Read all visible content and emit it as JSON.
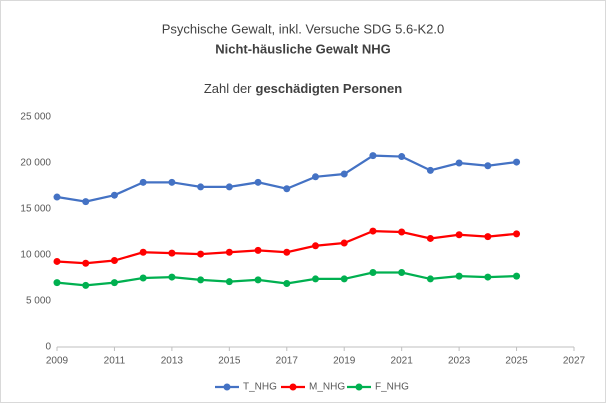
{
  "chart_data": {
    "type": "line",
    "title": "Psychische Gewalt, inkl. Versuche SDG 5.6-K2.0",
    "title_bold": "Nicht-häusliche Gewalt NHG",
    "subtitle": "Zahl der",
    "subtitle_bold": "geschädigten Personen",
    "x": [
      2009,
      2010,
      2011,
      2012,
      2013,
      2014,
      2015,
      2016,
      2017,
      2018,
      2019,
      2020,
      2021,
      2022,
      2023,
      2024,
      2025
    ],
    "series": [
      {
        "name": "T_NHG",
        "color": "#4472c4",
        "values": [
          16300,
          15800,
          16500,
          17900,
          17900,
          17400,
          17400,
          17900,
          17200,
          18500,
          18800,
          20800,
          20700,
          19200,
          20000,
          19700,
          20100
        ]
      },
      {
        "name": "M_NHG",
        "color": "#ff0000",
        "values": [
          9300,
          9100,
          9400,
          10300,
          10200,
          10100,
          10300,
          10500,
          10300,
          11000,
          11300,
          12600,
          12500,
          11800,
          12200,
          12000,
          12300
        ]
      },
      {
        "name": "F_NHG",
        "color": "#00b050",
        "values": [
          7000,
          6700,
          7000,
          7500,
          7600,
          7300,
          7100,
          7300,
          6900,
          7400,
          7400,
          8100,
          8100,
          7400,
          7700,
          7600,
          7700
        ]
      }
    ],
    "xlim": [
      2009,
      2027
    ],
    "xticks": [
      2009,
      2011,
      2013,
      2015,
      2017,
      2019,
      2021,
      2023,
      2025,
      2027
    ],
    "ylim": [
      0,
      25000
    ],
    "yticks": [
      0,
      {
        "value": 5000,
        "label": "5 000"
      },
      {
        "value": 10000,
        "label": "10 000"
      },
      {
        "value": 15000,
        "label": "15 000"
      },
      {
        "value": 20000,
        "label": "20 000"
      },
      {
        "value": 25000,
        "label": "25 000"
      }
    ],
    "grid": false,
    "legend": "bottom"
  }
}
